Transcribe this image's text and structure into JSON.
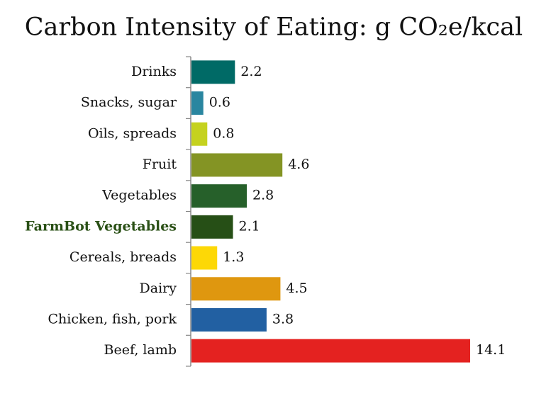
{
  "chart_data": {
    "type": "bar",
    "orientation": "horizontal",
    "title": "Carbon Intensity of Eating: g CO₂e/kcal",
    "categories": [
      "Drinks",
      "Snacks, sugar",
      "Oils, spreads",
      "Fruit",
      "Vegetables",
      "FarmBot Vegetables",
      "Cereals, breads",
      "Dairy",
      "Chicken, fish, pork",
      "Beef, lamb"
    ],
    "values": [
      2.2,
      0.6,
      0.8,
      4.6,
      2.8,
      2.1,
      1.3,
      4.5,
      3.8,
      14.1
    ],
    "colors": [
      "#006a66",
      "#2a86a0",
      "#c5d21f",
      "#849424",
      "#26602a",
      "#264f16",
      "#fdd806",
      "#df970f",
      "#2260a2",
      "#e42220"
    ],
    "highlight_index": 5,
    "highlight_color": "#2a5016"
  }
}
